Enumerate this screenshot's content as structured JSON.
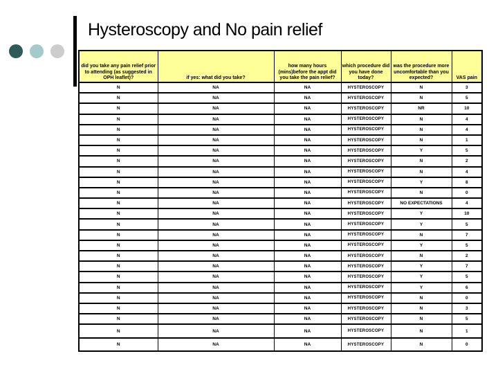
{
  "slide": {
    "title": "Hysteroscopy and No pain relief",
    "decor": {
      "bar_color": "#000000",
      "circle_colors": [
        "#2E5A5A",
        "#A3CBCB",
        "#CDCDCD"
      ]
    },
    "table": {
      "header_bg": "#FFFF99",
      "border_color": "#000000",
      "columns": [
        "did you take any pain relief prior to attending (as suggested in OPH leaflet)?",
        "if yes: what did you take?",
        "how many hours (mins)before the appt did you take the pain relief?",
        "which procedure did you have done today?",
        "was the procedure more uncomfortable than you expected?",
        "VAS pain"
      ],
      "rows": [
        [
          "N",
          "NA",
          "NA",
          "HYSTEROSCOPY",
          "N",
          "3"
        ],
        [
          "N",
          "NA",
          "NA",
          "HYSTEROSCOPY",
          "N",
          "5"
        ],
        [
          "N",
          "NA",
          "NA",
          "HYSTEROSCOPY",
          "NR",
          "10"
        ],
        [
          "N",
          "NA",
          "NA",
          "HYSTEROSCOPY",
          "N",
          "4"
        ],
        [
          "N",
          "NA",
          "NA",
          "HYSTEROSCOPY",
          "N",
          "4"
        ],
        [
          "N",
          "NA",
          "NA",
          "HYSTEROSCOPY",
          "N",
          "1"
        ],
        [
          "N",
          "NA",
          "NA",
          "HYSTEROSCOPY",
          "Y",
          "5"
        ],
        [
          "N",
          "NA",
          "NA",
          "HYSTEROSCOPY",
          "N",
          "2"
        ],
        [
          "N",
          "NA",
          "NA",
          "HYSTEROSCOPY",
          "N",
          "4"
        ],
        [
          "N",
          "NA",
          "NA",
          "HYSTEROSCOPY",
          "Y",
          "8"
        ],
        [
          "N",
          "NA",
          "NA",
          "HYSTEROSCOPY",
          "N",
          "0"
        ],
        [
          "N",
          "NA",
          "NA",
          "HYSTEROSCOPY",
          "NO EXPECTATIONS",
          "4"
        ],
        [
          "N",
          "NA",
          "NA",
          "HYSTEROSCOPY",
          "Y",
          "10"
        ],
        [
          "N",
          "NA",
          "NA",
          "HYSTEROSCOPY",
          "Y",
          "5"
        ],
        [
          "N",
          "NA",
          "NA",
          "HYSTEROSCOPY",
          "N",
          "7"
        ],
        [
          "N",
          "NA",
          "NA",
          "HYSTEROSCOPY",
          "Y",
          "5"
        ],
        [
          "N",
          "NA",
          "NA",
          "HYSTEROSCOPY",
          "N",
          "2"
        ],
        [
          "N",
          "NA",
          "NA",
          "HYSTEROSCOPY",
          "Y",
          "7"
        ],
        [
          "N",
          "NA",
          "NA",
          "HYSTEROSCOPY",
          "Y",
          "5"
        ],
        [
          "N",
          "NA",
          "NA",
          "HYSTEROSCOPY",
          "Y",
          "6"
        ],
        [
          "N",
          "NA",
          "NA",
          "HYSTEROSCOPY",
          "N",
          "0"
        ],
        [
          "N",
          "NA",
          "NA",
          "HYSTEROSCOPY",
          "N",
          "3"
        ],
        [
          "N",
          "NA",
          "NA",
          "HYSTEROSCOPY",
          "N",
          "5"
        ],
        [
          "N",
          "NA",
          "NA",
          "HYSTEROSCOPY",
          "N",
          "1"
        ],
        [
          "N",
          "NA",
          "NA",
          "HYSTEROSCOPY",
          "N",
          "0"
        ]
      ]
    }
  }
}
